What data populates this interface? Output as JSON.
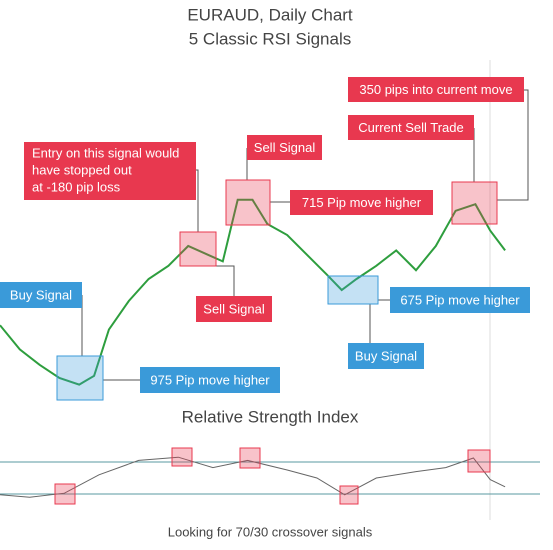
{
  "chart_data": [
    {
      "type": "line",
      "title": "EURAUD, Daily Chart",
      "subtitle": "5 Classic RSI Signals",
      "color": "#2e9e3e",
      "xlim": [
        0,
        520
      ],
      "ylim": [
        0,
        100
      ],
      "x": [
        0,
        20,
        40,
        60,
        80,
        95,
        110,
        130,
        150,
        170,
        190,
        210,
        225,
        240,
        255,
        270,
        290,
        310,
        330,
        345,
        360,
        380,
        400,
        420,
        440,
        460,
        480,
        495,
        510
      ],
      "values": [
        34,
        23,
        16,
        10,
        7,
        11,
        32,
        45,
        55,
        61,
        70,
        66,
        63,
        91,
        91,
        80,
        75,
        66,
        57,
        50,
        55,
        61,
        68,
        59,
        70,
        86,
        89,
        77,
        68
      ],
      "annotations": [
        {
          "kind": "sell",
          "lines": [
            "Entry on this signal would",
            "have stopped out",
            "at -180 pip loss"
          ]
        },
        {
          "kind": "sell",
          "lines": [
            "Sell Signal"
          ]
        },
        {
          "kind": "sell",
          "lines": [
            "715 Pip move higher"
          ]
        },
        {
          "kind": "sell",
          "lines": [
            "Sell Signal"
          ]
        },
        {
          "kind": "sell",
          "lines": [
            "350 pips into current move"
          ]
        },
        {
          "kind": "sell",
          "lines": [
            "Current Sell Trade"
          ]
        },
        {
          "kind": "buy",
          "lines": [
            "Buy Signal"
          ]
        },
        {
          "kind": "buy",
          "lines": [
            "975 Pip move higher"
          ]
        },
        {
          "kind": "buy",
          "lines": [
            "675 Pip move higher"
          ]
        },
        {
          "kind": "buy",
          "lines": [
            "Buy Signal"
          ]
        }
      ]
    },
    {
      "type": "line",
      "title": "Relative Strength Index",
      "caption": "Looking for 70/30 crossover signals",
      "color": "#666666",
      "xlim": [
        0,
        520
      ],
      "ylim": [
        0,
        100
      ],
      "levels": [
        70,
        30
      ],
      "x": [
        0,
        30,
        65,
        100,
        140,
        180,
        215,
        250,
        290,
        320,
        348,
        380,
        420,
        450,
        478,
        495,
        510
      ],
      "values": [
        29,
        26,
        31,
        54,
        72,
        76,
        63,
        72,
        60,
        50,
        29,
        50,
        58,
        63,
        75,
        48,
        39
      ]
    }
  ]
}
